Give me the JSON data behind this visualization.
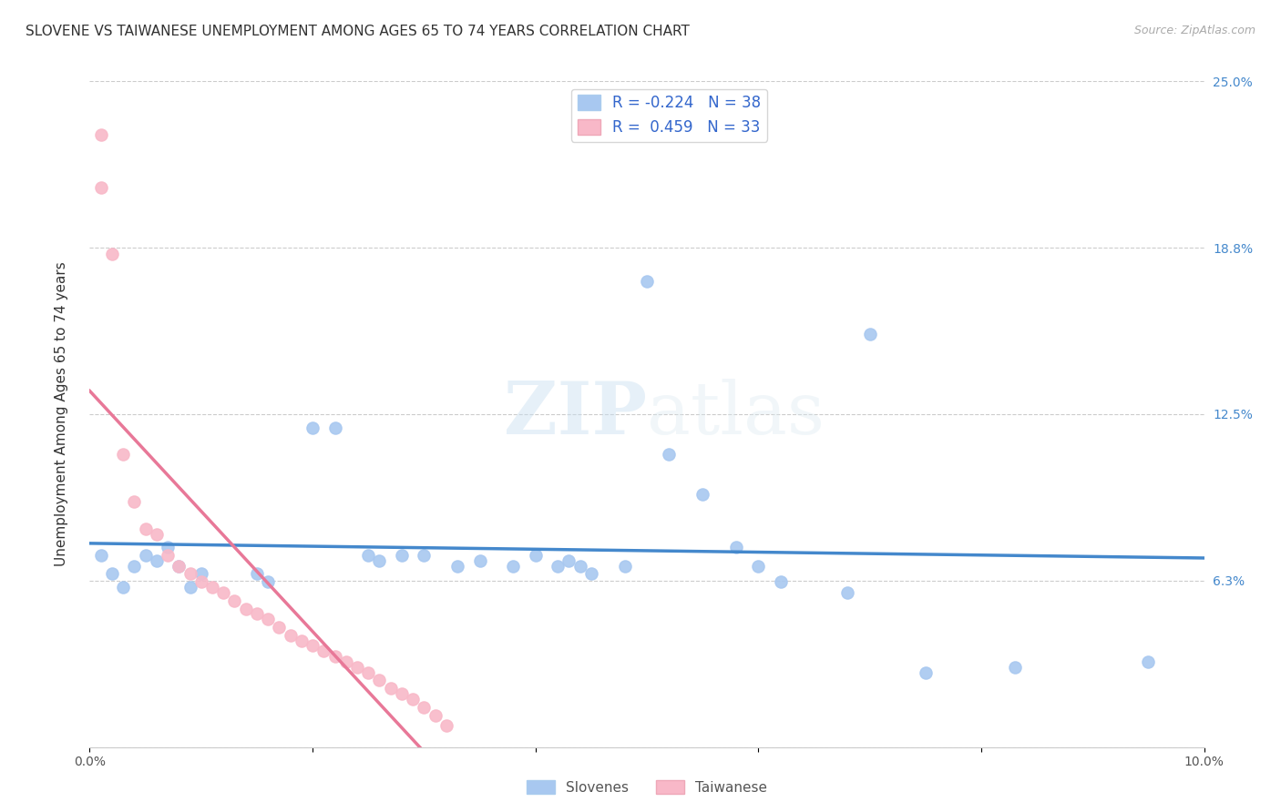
{
  "title": "SLOVENE VS TAIWANESE UNEMPLOYMENT AMONG AGES 65 TO 74 YEARS CORRELATION CHART",
  "source": "Source: ZipAtlas.com",
  "ylabel": "Unemployment Among Ages 65 to 74 years",
  "xlim": [
    0.0,
    0.1
  ],
  "ylim": [
    0.0,
    0.25
  ],
  "grid_color": "#cccccc",
  "watermark_zip": "ZIP",
  "watermark_atlas": "atlas",
  "slovene_color": "#a8c8f0",
  "taiwanese_color": "#f8b8c8",
  "slovene_line_color": "#4488cc",
  "taiwanese_line_color": "#e87898",
  "taiwanese_dashed_color": "#e0a0b8",
  "R_slovene": -0.224,
  "N_slovene": 38,
  "R_taiwanese": 0.459,
  "N_taiwanese": 33,
  "slovene_scatter": [
    [
      0.001,
      0.072
    ],
    [
      0.002,
      0.065
    ],
    [
      0.003,
      0.06
    ],
    [
      0.004,
      0.068
    ],
    [
      0.005,
      0.072
    ],
    [
      0.006,
      0.07
    ],
    [
      0.007,
      0.075
    ],
    [
      0.008,
      0.068
    ],
    [
      0.009,
      0.06
    ],
    [
      0.01,
      0.065
    ],
    [
      0.015,
      0.065
    ],
    [
      0.016,
      0.062
    ],
    [
      0.02,
      0.12
    ],
    [
      0.022,
      0.12
    ],
    [
      0.025,
      0.072
    ],
    [
      0.026,
      0.07
    ],
    [
      0.028,
      0.072
    ],
    [
      0.03,
      0.072
    ],
    [
      0.033,
      0.068
    ],
    [
      0.035,
      0.07
    ],
    [
      0.038,
      0.068
    ],
    [
      0.04,
      0.072
    ],
    [
      0.042,
      0.068
    ],
    [
      0.043,
      0.07
    ],
    [
      0.044,
      0.068
    ],
    [
      0.045,
      0.065
    ],
    [
      0.048,
      0.068
    ],
    [
      0.05,
      0.175
    ],
    [
      0.052,
      0.11
    ],
    [
      0.055,
      0.095
    ],
    [
      0.058,
      0.075
    ],
    [
      0.06,
      0.068
    ],
    [
      0.062,
      0.062
    ],
    [
      0.068,
      0.058
    ],
    [
      0.07,
      0.155
    ],
    [
      0.075,
      0.028
    ],
    [
      0.083,
      0.03
    ],
    [
      0.095,
      0.032
    ]
  ],
  "taiwanese_scatter": [
    [
      0.001,
      0.23
    ],
    [
      0.001,
      0.21
    ],
    [
      0.002,
      0.185
    ],
    [
      0.003,
      0.11
    ],
    [
      0.004,
      0.092
    ],
    [
      0.005,
      0.082
    ],
    [
      0.006,
      0.08
    ],
    [
      0.007,
      0.072
    ],
    [
      0.008,
      0.068
    ],
    [
      0.009,
      0.065
    ],
    [
      0.01,
      0.062
    ],
    [
      0.011,
      0.06
    ],
    [
      0.012,
      0.058
    ],
    [
      0.013,
      0.055
    ],
    [
      0.014,
      0.052
    ],
    [
      0.015,
      0.05
    ],
    [
      0.016,
      0.048
    ],
    [
      0.017,
      0.045
    ],
    [
      0.018,
      0.042
    ],
    [
      0.019,
      0.04
    ],
    [
      0.02,
      0.038
    ],
    [
      0.021,
      0.036
    ],
    [
      0.022,
      0.034
    ],
    [
      0.023,
      0.032
    ],
    [
      0.024,
      0.03
    ],
    [
      0.025,
      0.028
    ],
    [
      0.026,
      0.025
    ],
    [
      0.027,
      0.022
    ],
    [
      0.028,
      0.02
    ],
    [
      0.029,
      0.018
    ],
    [
      0.03,
      0.015
    ],
    [
      0.031,
      0.012
    ],
    [
      0.032,
      0.008
    ]
  ],
  "title_fontsize": 11,
  "axis_label_fontsize": 11,
  "tick_fontsize": 10,
  "legend_fontsize": 12
}
